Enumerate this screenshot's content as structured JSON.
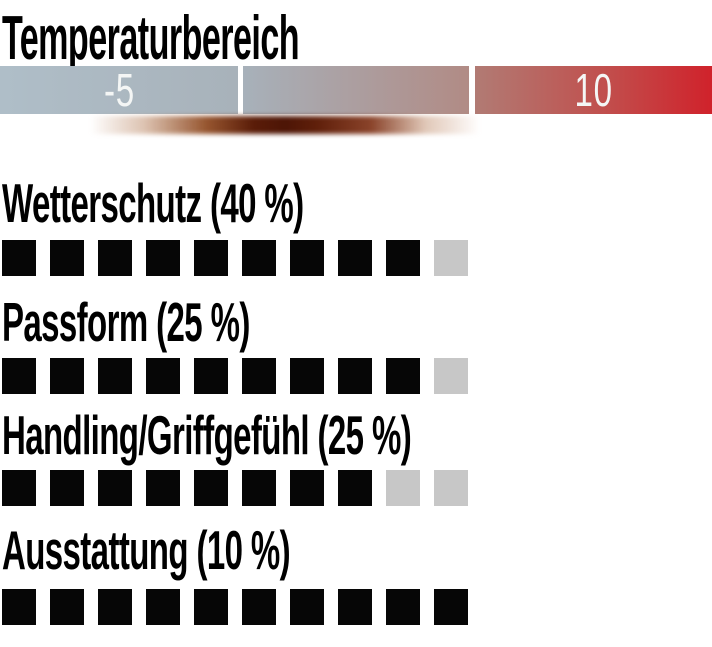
{
  "title": "Temperaturbereich",
  "temperature_scale": {
    "tick_labels": {
      "low": "-5",
      "high": "10"
    },
    "colors": {
      "cold_left": "#afbec8",
      "cold_right": "#a8b2ba",
      "mid_left": "#a7b1ba",
      "mid_right": "#b18b85",
      "warm_left": "#b17b74",
      "warm_right": "#d0222b",
      "divider": "#ffffff",
      "indicator_dark": "#4d1506"
    }
  },
  "ratings": {
    "max_squares": 10,
    "filled_color": "#060606",
    "empty_color": "#c7c7c7",
    "rows": [
      {
        "label": "Wetterschutz (40 %)",
        "filled": 9
      },
      {
        "label": "Passform (25 %)",
        "filled": 9
      },
      {
        "label": "Handling/Griffgefühl (25 %)",
        "filled": 8
      },
      {
        "label": "Ausstattung (10 %)",
        "filled": 10
      }
    ]
  },
  "chart_data": {
    "type": "bar",
    "title": "Temperaturbereich",
    "categories": [
      "Wetterschutz (40 %)",
      "Passform (25 %)",
      "Handling/Griffgefühl (25 %)",
      "Ausstattung (10 %)"
    ],
    "values": [
      9,
      9,
      8,
      10
    ],
    "ylim": [
      0,
      10
    ],
    "scale_tick_labels": [
      "-5",
      "10"
    ],
    "legend": "off",
    "notes": "filled squares out of 10 per weighted criterion"
  }
}
